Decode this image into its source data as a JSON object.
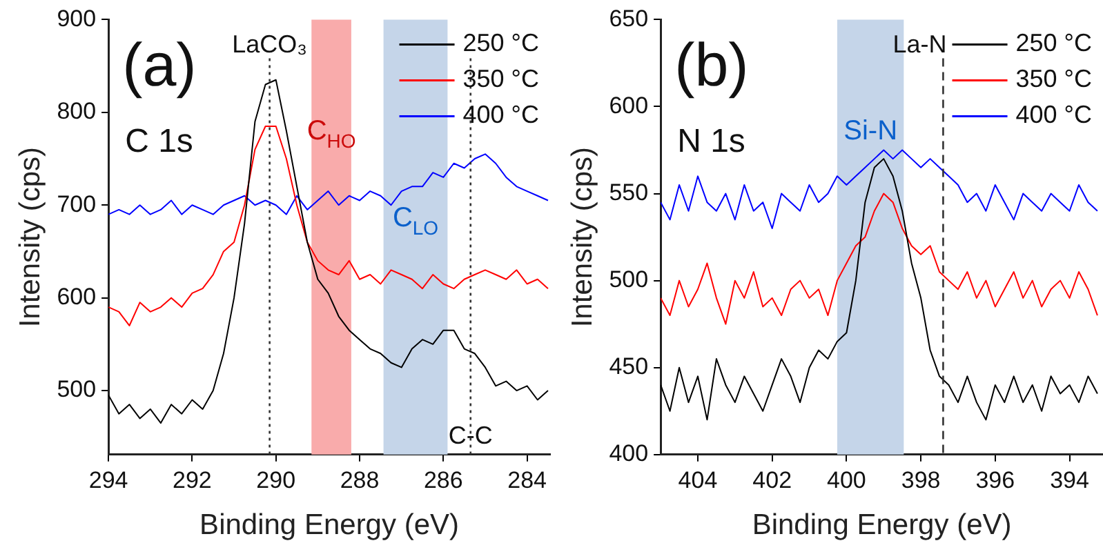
{
  "chart_data": [
    {
      "type": "line",
      "xlabel": "Binding Energy (eV)",
      "ylabel": "Intensity (cps)",
      "xlim": [
        294,
        283.45
      ],
      "xticks": [
        294,
        292,
        290,
        288,
        286,
        284
      ],
      "ylim": [
        431,
        900
      ],
      "yticks": [
        500,
        600,
        700,
        800,
        900
      ],
      "grid": false,
      "legend": "top right",
      "marker": "none",
      "x": [
        294,
        293.75,
        293.5,
        293.25,
        293,
        292.75,
        292.5,
        292.25,
        292,
        291.75,
        291.5,
        291.25,
        291,
        290.75,
        290.5,
        290.25,
        290,
        289.75,
        289.5,
        289.25,
        289,
        288.75,
        288.5,
        288.25,
        288,
        287.75,
        287.5,
        287.25,
        287,
        286.75,
        286.5,
        286.25,
        286,
        285.75,
        285.5,
        285.25,
        285,
        284.75,
        284.5,
        284.25,
        284,
        283.75,
        283.5
      ],
      "series": [
        {
          "name": "250 °C",
          "color": "#000000",
          "values": [
            495,
            475,
            485,
            470,
            480,
            465,
            485,
            475,
            490,
            480,
            500,
            540,
            600,
            680,
            790,
            830,
            835,
            780,
            720,
            660,
            620,
            605,
            580,
            565,
            555,
            545,
            540,
            530,
            525,
            545,
            555,
            550,
            565,
            565,
            545,
            540,
            525,
            505,
            510,
            500,
            505,
            490,
            500
          ]
        },
        {
          "name": "350 °C",
          "color": "#ff0000",
          "values": [
            590,
            585,
            570,
            595,
            585,
            590,
            600,
            590,
            605,
            610,
            625,
            650,
            660,
            700,
            760,
            785,
            785,
            750,
            700,
            660,
            640,
            630,
            625,
            640,
            620,
            625,
            615,
            630,
            625,
            620,
            610,
            625,
            615,
            610,
            620,
            625,
            630,
            625,
            620,
            630,
            615,
            620,
            610
          ]
        },
        {
          "name": "400 °C",
          "color": "#0000ff",
          "values": [
            690,
            695,
            690,
            700,
            690,
            695,
            705,
            690,
            700,
            695,
            690,
            700,
            705,
            710,
            700,
            705,
            700,
            690,
            710,
            695,
            705,
            715,
            700,
            710,
            705,
            715,
            710,
            700,
            715,
            720,
            720,
            735,
            730,
            745,
            740,
            750,
            755,
            745,
            730,
            720,
            715,
            710,
            705
          ]
        }
      ],
      "bands": [
        {
          "axis": "x",
          "from": 289.15,
          "to": 288.2,
          "label": "C$_{HO}$",
          "color": "#f9abab"
        },
        {
          "axis": "x",
          "from": 287.43,
          "to": 285.9,
          "label": "C$_{LO}$",
          "color": "#c5d5e9"
        }
      ],
      "ref_lines": [
        {
          "axis": "x",
          "value": 290.15,
          "label": "LaCO₃",
          "line_style": "dotted"
        },
        {
          "axis": "x",
          "value": 285.35,
          "label": "C-C",
          "line_style": "dotted"
        }
      ],
      "annotations": [
        "(a)",
        "C 1s"
      ]
    },
    {
      "type": "line",
      "xlabel": "Binding Energy (eV)",
      "ylabel": "Intensity (cps)",
      "xlim": [
        405,
        393.1
      ],
      "xticks": [
        404,
        402,
        400,
        398,
        396,
        394
      ],
      "ylim": [
        400,
        650
      ],
      "yticks": [
        400,
        450,
        500,
        550,
        600,
        650
      ],
      "grid": false,
      "legend": "top right",
      "marker": "none",
      "x": [
        405,
        404.75,
        404.5,
        404.25,
        404,
        403.75,
        403.5,
        403.25,
        403,
        402.75,
        402.5,
        402.25,
        402,
        401.75,
        401.5,
        401.25,
        401,
        400.75,
        400.5,
        400.25,
        400,
        399.75,
        399.5,
        399.25,
        399,
        398.75,
        398.5,
        398.25,
        398,
        397.75,
        397.5,
        397.25,
        397,
        396.75,
        396.5,
        396.25,
        396,
        395.75,
        395.5,
        395.25,
        395,
        394.75,
        394.5,
        394.25,
        394,
        393.75,
        393.5,
        393.25
      ],
      "series": [
        {
          "name": "250 °C",
          "color": "#000000",
          "values": [
            440,
            425,
            450,
            430,
            445,
            420,
            455,
            440,
            430,
            445,
            435,
            425,
            440,
            455,
            445,
            430,
            450,
            460,
            455,
            465,
            470,
            500,
            545,
            565,
            570,
            560,
            540,
            510,
            490,
            460,
            445,
            440,
            430,
            445,
            430,
            420,
            440,
            430,
            445,
            430,
            440,
            425,
            445,
            435,
            440,
            430,
            445,
            435
          ]
        },
        {
          "name": "350 °C",
          "color": "#ff0000",
          "values": [
            490,
            480,
            500,
            485,
            495,
            510,
            490,
            475,
            500,
            490,
            505,
            485,
            490,
            480,
            495,
            500,
            490,
            495,
            480,
            500,
            510,
            520,
            525,
            540,
            550,
            545,
            530,
            520,
            515,
            520,
            505,
            500,
            495,
            505,
            490,
            500,
            485,
            495,
            505,
            490,
            500,
            485,
            495,
            500,
            490,
            505,
            495,
            480
          ]
        },
        {
          "name": "400 °C",
          "color": "#0000ff",
          "values": [
            545,
            535,
            555,
            540,
            560,
            545,
            540,
            550,
            535,
            555,
            540,
            545,
            530,
            550,
            545,
            540,
            555,
            545,
            550,
            560,
            555,
            560,
            565,
            570,
            575,
            570,
            575,
            570,
            565,
            570,
            565,
            560,
            555,
            545,
            550,
            540,
            555,
            545,
            535,
            550,
            545,
            540,
            550,
            545,
            540,
            555,
            545,
            540
          ]
        }
      ],
      "bands": [
        {
          "axis": "x",
          "from": 400.25,
          "to": 398.46,
          "label": "Si-N",
          "color": "#c5d5e9"
        }
      ],
      "ref_lines": [
        {
          "axis": "x",
          "value": 397.4,
          "label": "La-N",
          "line_style": "dashed"
        }
      ],
      "annotations": [
        "(b)",
        "N 1s"
      ]
    }
  ]
}
